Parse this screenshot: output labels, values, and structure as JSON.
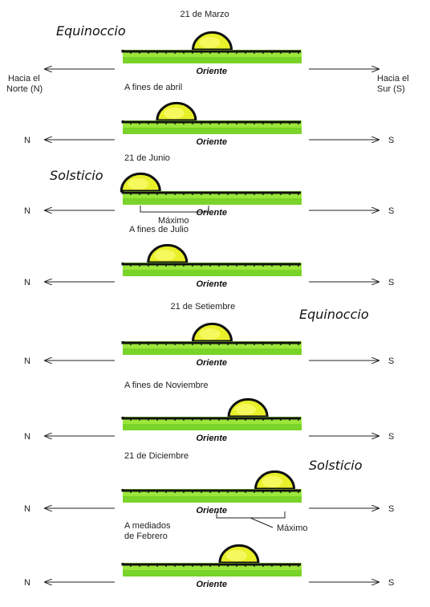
{
  "colors": {
    "ground_light": "#9be63a",
    "ground_dark": "#5cc21a",
    "ground_edge": "#111111",
    "sun_fill": "#e8f02a",
    "sun_core": "#f7fb6a",
    "sun_edge": "#111111"
  },
  "header_labels": {
    "left": [
      "Hacia el",
      "Norte (N)"
    ],
    "right": [
      "Hacia el",
      "Sur (S)"
    ]
  },
  "direction_short": {
    "north": "N",
    "south": "S"
  },
  "oriente_label": "Oriente",
  "maximo_label": "Máximo",
  "seasons": {
    "equinox": "Equinoccio",
    "solstice": "Solsticio"
  },
  "panels": [
    {
      "date_lines": [
        "21 de Marzo"
      ],
      "sun_position": 0.5,
      "season": "equinox",
      "max_label": false
    },
    {
      "date_lines": [
        "A fines de abril"
      ],
      "sun_position": 0.3,
      "season": null,
      "max_label": false
    },
    {
      "date_lines": [
        "21 de Junio"
      ],
      "sun_position": 0.1,
      "season": "solstice",
      "max_label": true
    },
    {
      "date_lines": [
        "A fines de Julio"
      ],
      "sun_position": 0.25,
      "season": null,
      "max_label": false
    },
    {
      "date_lines": [
        "21 de Setiembre"
      ],
      "sun_position": 0.5,
      "season": "equinox",
      "max_label": false
    },
    {
      "date_lines": [
        "A fines de Noviembre"
      ],
      "sun_position": 0.7,
      "season": null,
      "max_label": false
    },
    {
      "date_lines": [
        "21 de Diciembre"
      ],
      "sun_position": 0.85,
      "season": "solstice",
      "max_label": true
    },
    {
      "date_lines": [
        "A mediados",
        "de Febrero"
      ],
      "sun_position": 0.65,
      "season": null,
      "max_label": false
    }
  ]
}
